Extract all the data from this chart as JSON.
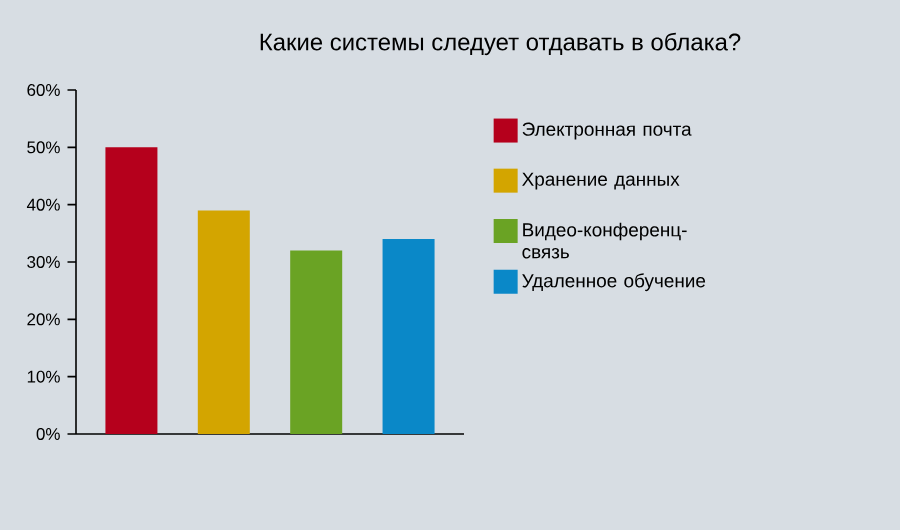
{
  "chart_data": {
    "type": "bar",
    "title": "Какие системы следует отдавать в облака?",
    "categories": [
      null,
      null,
      null,
      null
    ],
    "series": [
      {
        "name": "Электронная почта",
        "color": "#b5001c",
        "values": [
          50,
          null,
          null,
          null
        ]
      },
      {
        "name": "Хранение данных",
        "color": "#d3a500",
        "values": [
          null,
          39,
          null,
          null
        ]
      },
      {
        "name": "Видео-конференц-связь",
        "color": "#6aa324",
        "values": [
          null,
          null,
          32,
          null
        ]
      },
      {
        "name": "Удаленное обучение",
        "color": "#0a88c8",
        "values": [
          null,
          null,
          null,
          34
        ]
      }
    ],
    "ylim": [
      0,
      60
    ],
    "yticks": [
      {
        "value": 0,
        "label": "0%"
      },
      {
        "value": 10,
        "label": "10%"
      },
      {
        "value": 20,
        "label": "20%"
      },
      {
        "value": 30,
        "label": "30%"
      },
      {
        "value": 40,
        "label": "40%"
      },
      {
        "value": 50,
        "label": "50%"
      },
      {
        "value": 60,
        "label": "60%"
      }
    ],
    "legend": "right"
  }
}
